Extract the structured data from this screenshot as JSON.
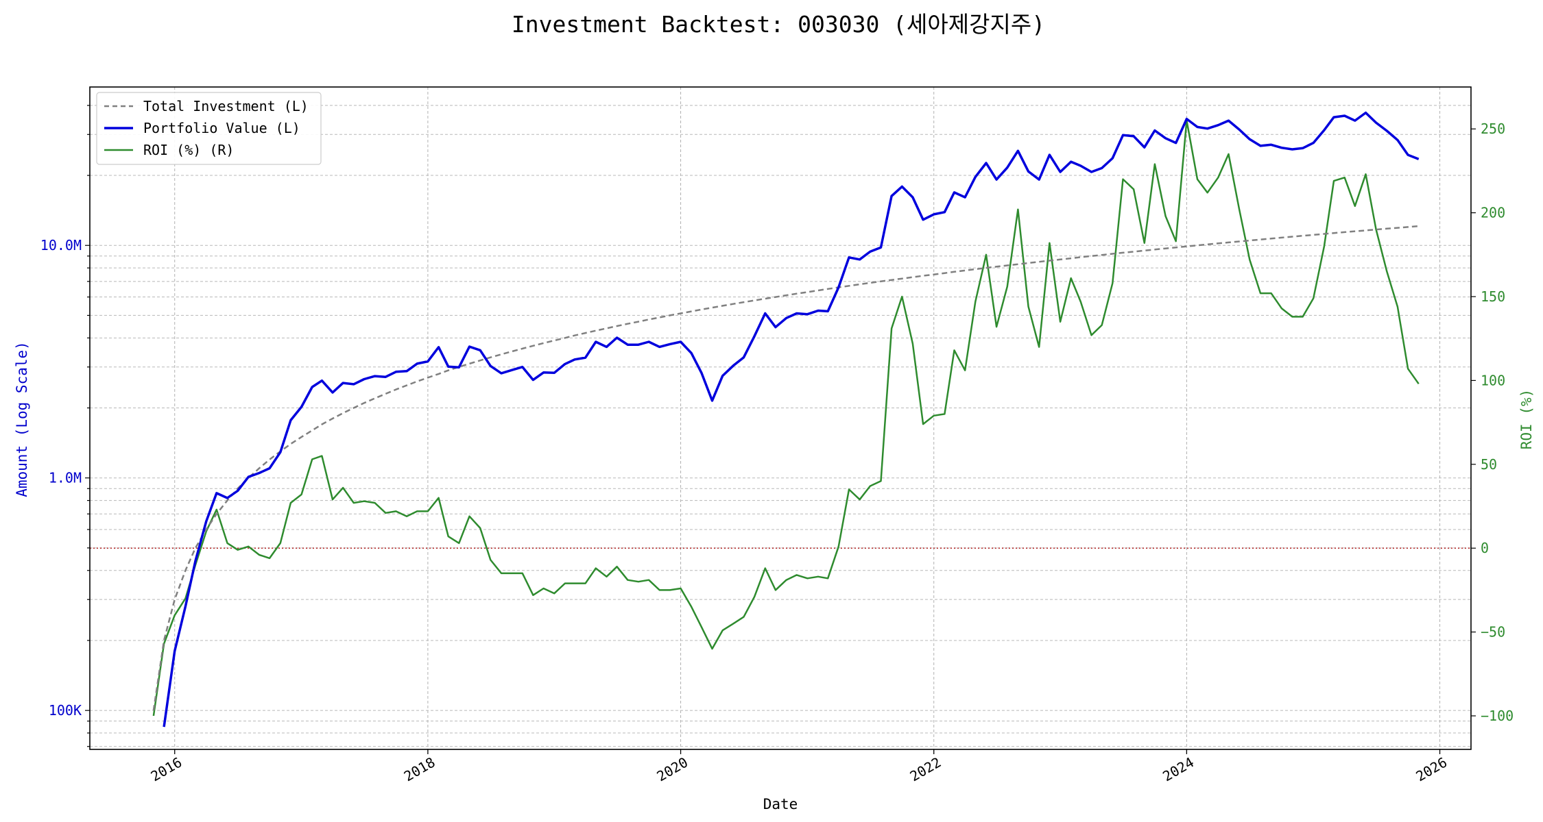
{
  "chart_data": {
    "type": "line",
    "title": "Investment Backtest: 003030 (세아제강지주)",
    "xlabel": "Date",
    "ylabel_left": "Amount (Log Scale)",
    "ylabel_right": "ROI (%)",
    "x_range": [
      "2015-05-01",
      "2026-04-01"
    ],
    "ylim_left": [
      68000,
      48000000
    ],
    "ylim_right": [
      -120,
      275
    ],
    "left_scale": "log",
    "grid": true,
    "legend_position": "top-left",
    "x_ticks": [
      {
        "date": "2016-01-01",
        "label": "2016"
      },
      {
        "date": "2018-01-01",
        "label": "2018"
      },
      {
        "date": "2020-01-01",
        "label": "2020"
      },
      {
        "date": "2022-01-01",
        "label": "2022"
      },
      {
        "date": "2024-01-01",
        "label": "2024"
      },
      {
        "date": "2026-01-01",
        "label": "2026"
      }
    ],
    "y_left_ticks": [
      {
        "value": 100000,
        "label": "100K"
      },
      {
        "value": 1000000,
        "label": "1.0M"
      },
      {
        "value": 10000000,
        "label": "10.0M"
      }
    ],
    "y_right_ticks": [
      {
        "value": -100,
        "label": "−100"
      },
      {
        "value": -50,
        "label": "−50"
      },
      {
        "value": 0,
        "label": "0"
      },
      {
        "value": 50,
        "label": "50"
      },
      {
        "value": 100,
        "label": "100"
      },
      {
        "value": 150,
        "label": "150"
      },
      {
        "value": 200,
        "label": "200"
      },
      {
        "value": 250,
        "label": "250"
      }
    ],
    "reference_line": {
      "axis": "right",
      "value": 0,
      "style": "dotted",
      "color": "#b22222"
    },
    "x": [
      "2015-11-01",
      "2015-12-01",
      "2016-01-01",
      "2016-02-01",
      "2016-03-01",
      "2016-04-01",
      "2016-05-01",
      "2016-06-01",
      "2016-07-01",
      "2016-08-01",
      "2016-09-01",
      "2016-10-01",
      "2016-11-01",
      "2016-12-01",
      "2017-01-01",
      "2017-02-01",
      "2017-03-01",
      "2017-04-01",
      "2017-05-01",
      "2017-06-01",
      "2017-07-01",
      "2017-08-01",
      "2017-09-01",
      "2017-10-01",
      "2017-11-01",
      "2017-12-01",
      "2018-01-01",
      "2018-02-01",
      "2018-03-01",
      "2018-04-01",
      "2018-05-01",
      "2018-06-01",
      "2018-07-01",
      "2018-08-01",
      "2018-09-01",
      "2018-10-01",
      "2018-11-01",
      "2018-12-01",
      "2019-01-01",
      "2019-02-01",
      "2019-03-01",
      "2019-04-01",
      "2019-05-01",
      "2019-06-01",
      "2019-07-01",
      "2019-08-01",
      "2019-09-01",
      "2019-10-01",
      "2019-11-01",
      "2019-12-01",
      "2020-01-01",
      "2020-02-01",
      "2020-03-01",
      "2020-04-01",
      "2020-05-01",
      "2020-06-01",
      "2020-07-01",
      "2020-08-01",
      "2020-09-01",
      "2020-10-01",
      "2020-11-01",
      "2020-12-01",
      "2021-01-01",
      "2021-02-01",
      "2021-03-01",
      "2021-04-01",
      "2021-05-01",
      "2021-06-01",
      "2021-07-01",
      "2021-08-01",
      "2021-09-01",
      "2021-10-01",
      "2021-11-01",
      "2021-12-01",
      "2022-01-01",
      "2022-02-01",
      "2022-03-01",
      "2022-04-01",
      "2022-05-01",
      "2022-06-01",
      "2022-07-01",
      "2022-08-01",
      "2022-09-01",
      "2022-10-01",
      "2022-11-01",
      "2022-12-01",
      "2023-01-01",
      "2023-02-01",
      "2023-03-01",
      "2023-04-01",
      "2023-05-01",
      "2023-06-01",
      "2023-07-01",
      "2023-08-01",
      "2023-09-01",
      "2023-10-01",
      "2023-11-01",
      "2023-12-01",
      "2024-01-01",
      "2024-02-01",
      "2024-03-01",
      "2024-04-01",
      "2024-05-01",
      "2024-06-01",
      "2024-07-01",
      "2024-08-01",
      "2024-09-01",
      "2024-10-01",
      "2024-11-01",
      "2024-12-01",
      "2025-01-01",
      "2025-02-01",
      "2025-03-01",
      "2025-04-01",
      "2025-05-01",
      "2025-06-01",
      "2025-07-01",
      "2025-08-01",
      "2025-09-01",
      "2025-10-01",
      "2025-11-01"
    ],
    "series": [
      {
        "name": "Total Investment (L)",
        "axis": "left",
        "color": "#808080",
        "style": "dashed",
        "values": [
          100000,
          200000,
          300000,
          400000,
          500000,
          600000,
          700000,
          800000,
          900000,
          1000000,
          1100000,
          1200000,
          1300000,
          1400000,
          1500000,
          1600000,
          1700000,
          1800000,
          1900000,
          2000000,
          2100000,
          2200000,
          2300000,
          2400000,
          2500000,
          2600000,
          2700000,
          2800000,
          2900000,
          3000000,
          3100000,
          3200000,
          3300000,
          3400000,
          3500000,
          3600000,
          3700000,
          3800000,
          3900000,
          4000000,
          4100000,
          4200000,
          4300000,
          4400000,
          4500000,
          4600000,
          4700000,
          4800000,
          4900000,
          5000000,
          5100000,
          5200000,
          5300000,
          5400000,
          5500000,
          5600000,
          5700000,
          5800000,
          5900000,
          6000000,
          6100000,
          6200000,
          6300000,
          6400000,
          6500000,
          6600000,
          6700000,
          6800000,
          6900000,
          7000000,
          7100000,
          7200000,
          7300000,
          7400000,
          7500000,
          7600000,
          7700000,
          7800000,
          7900000,
          8000000,
          8100000,
          8200000,
          8300000,
          8400000,
          8500000,
          8600000,
          8700000,
          8800000,
          8900000,
          9000000,
          9100000,
          9200000,
          9300000,
          9400000,
          9500000,
          9600000,
          9700000,
          9800000,
          9900000,
          10000000,
          10100000,
          10200000,
          10300000,
          10400000,
          10500000,
          10600000,
          10700000,
          10800000,
          10900000,
          11000000,
          11100000,
          11200000,
          11300000,
          11400000,
          11500000,
          11600000,
          11700000,
          11800000,
          11900000,
          12000000,
          12100000
        ]
      },
      {
        "name": "Portfolio Value (L)",
        "axis": "left",
        "color": "#0000dd",
        "style": "solid",
        "values": [
          null,
          85000,
          180000,
          280000,
          440000,
          650000,
          860000,
          820000,
          880000,
          1010000,
          1050000,
          1100000,
          1290000,
          1770000,
          2020000,
          2460000,
          2620000,
          2330000,
          2560000,
          2530000,
          2660000,
          2740000,
          2720000,
          2860000,
          2880000,
          3100000,
          3170000,
          3650000,
          3010000,
          2990000,
          3670000,
          3540000,
          3030000,
          2820000,
          2910000,
          3000000,
          2640000,
          2840000,
          2830000,
          3090000,
          3230000,
          3290000,
          3850000,
          3660000,
          4010000,
          3740000,
          3740000,
          3850000,
          3660000,
          3760000,
          3850000,
          3440000,
          2830000,
          2150000,
          2750000,
          3040000,
          3300000,
          4070000,
          5100000,
          4450000,
          4870000,
          5100000,
          5060000,
          5240000,
          5210000,
          6600000,
          8880000,
          8700000,
          9400000,
          9800000,
          16300000,
          17900000,
          16100000,
          12900000,
          13600000,
          13900000,
          16900000,
          16100000,
          19700000,
          22600000,
          19200000,
          21600000,
          25500000,
          20800000,
          19200000,
          24500000,
          20700000,
          22900000,
          22000000,
          20700000,
          21500000,
          23700000,
          29800000,
          29500000,
          26400000,
          31200000,
          28900000,
          27600000,
          35000000,
          32300000,
          31800000,
          32900000,
          34400000,
          31500000,
          28600000,
          26800000,
          27100000,
          26300000,
          25900000,
          26200000,
          27600000,
          31300000,
          35600000,
          36100000,
          34400000,
          37200000,
          33700000,
          31100000,
          28400000,
          24500000,
          23500000
        ]
      },
      {
        "name": "ROI (%) (R)",
        "axis": "right",
        "color": "#2e8b2e",
        "style": "solid",
        "values": [
          -100,
          -57,
          -40,
          -30,
          -10,
          10,
          23,
          3,
          -1,
          1,
          -4,
          -6,
          3,
          27,
          32,
          53,
          55,
          29,
          36,
          27,
          28,
          27,
          21,
          22,
          19,
          22,
          22,
          30,
          7,
          3,
          19,
          12,
          -7,
          -15,
          -15,
          -15,
          -28,
          -24,
          -27,
          -21,
          -21,
          -21,
          -12,
          -17,
          -11,
          -19,
          -20,
          -19,
          -25,
          -25,
          -24,
          -35,
          -47,
          -60,
          -49,
          -45,
          -41,
          -29,
          -12,
          -25,
          -19,
          -16,
          -18,
          -17,
          -18,
          1,
          35,
          29,
          37,
          40,
          131,
          150,
          122,
          74,
          79,
          80,
          118,
          106,
          147,
          175,
          132,
          156,
          202,
          144,
          120,
          182,
          135,
          161,
          147,
          127,
          133,
          158,
          220,
          214,
          182,
          229,
          198,
          183,
          255,
          220,
          212,
          221,
          235,
          202,
          172,
          152,
          152,
          143,
          138,
          138,
          149,
          180,
          219,
          221,
          204,
          223,
          190,
          165,
          144,
          107,
          98
        ]
      }
    ]
  }
}
